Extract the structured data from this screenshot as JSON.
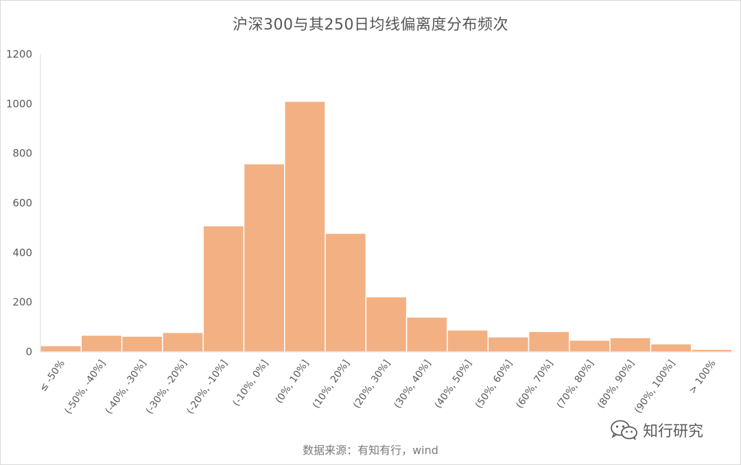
{
  "chart_data": {
    "type": "bar",
    "title": "沪深300与其250日均线偏离度分布频次",
    "categories": [
      "≤ -50%",
      "(-50%, -40%]",
      "(-40%, -30%]",
      "(-30%, -20%]",
      "(-20%, -10%]",
      "(-10%, 0%]",
      "(0%, 10%]",
      "(10%, 20%]",
      "(20%, 30%]",
      "(30%, 40%]",
      "(40%, 50%]",
      "(50%, 60%]",
      "(60%, 70%]",
      "(70%, 80%]",
      "(80%, 90%]",
      "(90%, 100%]",
      "> 100%"
    ],
    "values": [
      25,
      67,
      63,
      78,
      508,
      758,
      1010,
      478,
      222,
      140,
      88,
      60,
      82,
      47,
      57,
      32,
      10
    ],
    "ylim": [
      0,
      1200
    ],
    "yticks": [
      "0",
      "200",
      "400",
      "600",
      "800",
      "1000",
      "1200"
    ],
    "bar_color": "#f3b183",
    "grid": false,
    "legend": "none"
  },
  "source_text": "数据来源：有知有行，wind",
  "watermark": {
    "text": "知行研究",
    "icon": "wechat-icon"
  }
}
